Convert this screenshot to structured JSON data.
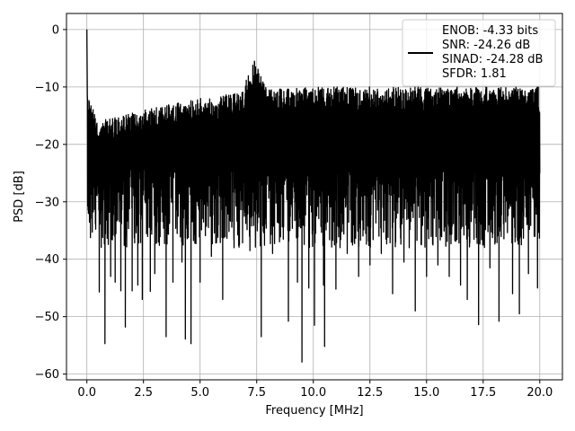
{
  "chart_data": {
    "type": "line",
    "xlabel": "Frequency [MHz]",
    "ylabel": "PSD [dB]",
    "xlim": [
      -0.9,
      21.0
    ],
    "ylim": [
      -61.0,
      2.8
    ],
    "xticks": [
      0.0,
      2.5,
      5.0,
      7.5,
      10.0,
      12.5,
      15.0,
      17.5,
      20.0
    ],
    "xtick_labels": [
      "0.0",
      "2.5",
      "5.0",
      "7.5",
      "10.0",
      "12.5",
      "15.0",
      "17.5",
      "20.0"
    ],
    "yticks": [
      0,
      -10,
      -20,
      -30,
      -40,
      -50,
      -60
    ],
    "ytick_labels": [
      "0",
      "−10",
      "−20",
      "−30",
      "−40",
      "−50",
      "−60"
    ],
    "grid": true,
    "legend_position": "top-right",
    "line_color": "#000000",
    "legend": [
      "ENOB: -4.33 bits",
      "SNR: -24.26 dB",
      "SINAD: -24.28 dB",
      "SFDR: 1.81"
    ],
    "series": [
      {
        "x_range": [
          0.0,
          20.0
        ],
        "peak": {
          "x": 0.0,
          "y": 0.0
        },
        "spur": {
          "x": 7.4,
          "y": -5.5
        },
        "noise_floor_mean": -22.5,
        "upper_envelope": [
          {
            "x": 0.0,
            "y": -10.5
          },
          {
            "x": 0.5,
            "y": -16.0
          },
          {
            "x": 2.5,
            "y": -14.0
          },
          {
            "x": 5.0,
            "y": -12.0
          },
          {
            "x": 6.8,
            "y": -11.0
          },
          {
            "x": 7.4,
            "y": -5.5
          },
          {
            "x": 8.0,
            "y": -10.5
          },
          {
            "x": 10.0,
            "y": -10.0
          },
          {
            "x": 12.5,
            "y": -10.0
          },
          {
            "x": 15.0,
            "y": -10.0
          },
          {
            "x": 17.5,
            "y": -10.0
          },
          {
            "x": 20.0,
            "y": -10.0
          }
        ],
        "deep_dips": [
          {
            "x": 0.55,
            "y": -45.7
          },
          {
            "x": 0.8,
            "y": -54.7
          },
          {
            "x": 1.05,
            "y": -43.0
          },
          {
            "x": 1.25,
            "y": -44.0
          },
          {
            "x": 1.5,
            "y": -45.5
          },
          {
            "x": 1.7,
            "y": -51.8
          },
          {
            "x": 2.0,
            "y": -45.5
          },
          {
            "x": 2.25,
            "y": -44.5
          },
          {
            "x": 2.45,
            "y": -47.0
          },
          {
            "x": 2.8,
            "y": -45.6
          },
          {
            "x": 3.0,
            "y": -42.5
          },
          {
            "x": 3.5,
            "y": -53.5
          },
          {
            "x": 3.8,
            "y": -44.0
          },
          {
            "x": 4.2,
            "y": -40.5
          },
          {
            "x": 4.35,
            "y": -53.9
          },
          {
            "x": 4.6,
            "y": -54.7
          },
          {
            "x": 5.0,
            "y": -44.0
          },
          {
            "x": 5.5,
            "y": -39.5
          },
          {
            "x": 6.0,
            "y": -47.0
          },
          {
            "x": 6.5,
            "y": -38.0
          },
          {
            "x": 7.2,
            "y": -38.5
          },
          {
            "x": 7.7,
            "y": -53.5
          },
          {
            "x": 8.2,
            "y": -39.0
          },
          {
            "x": 8.9,
            "y": -50.8
          },
          {
            "x": 9.3,
            "y": -44.0
          },
          {
            "x": 9.5,
            "y": -57.9
          },
          {
            "x": 9.8,
            "y": -45.0
          },
          {
            "x": 10.05,
            "y": -51.5
          },
          {
            "x": 10.45,
            "y": -44.5
          },
          {
            "x": 10.5,
            "y": -55.2
          },
          {
            "x": 11.0,
            "y": -45.2
          },
          {
            "x": 11.5,
            "y": -39.0
          },
          {
            "x": 12.0,
            "y": -43.0
          },
          {
            "x": 12.5,
            "y": -41.0
          },
          {
            "x": 13.0,
            "y": -39.0
          },
          {
            "x": 13.5,
            "y": -46.0
          },
          {
            "x": 14.0,
            "y": -40.5
          },
          {
            "x": 14.5,
            "y": -49.0
          },
          {
            "x": 15.0,
            "y": -43.0
          },
          {
            "x": 15.5,
            "y": -41.0
          },
          {
            "x": 16.0,
            "y": -43.0
          },
          {
            "x": 16.5,
            "y": -44.5
          },
          {
            "x": 16.8,
            "y": -47.0
          },
          {
            "x": 17.3,
            "y": -51.4
          },
          {
            "x": 17.8,
            "y": -41.5
          },
          {
            "x": 18.2,
            "y": -50.8
          },
          {
            "x": 18.8,
            "y": -46.0
          },
          {
            "x": 19.1,
            "y": -49.5
          },
          {
            "x": 19.5,
            "y": -42.5
          },
          {
            "x": 19.9,
            "y": -45.0
          }
        ]
      }
    ]
  }
}
